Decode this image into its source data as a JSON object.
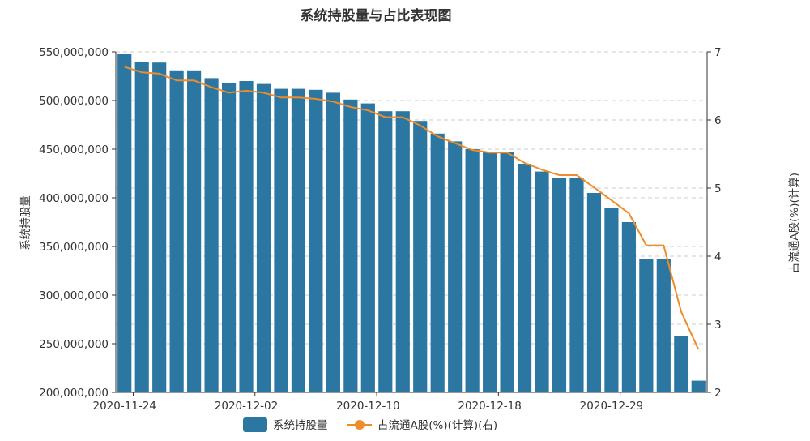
{
  "chart_data": {
    "type": "bar",
    "title": "系统持股量与占比表现图",
    "xlabel": "",
    "ylabel": "系统持股量",
    "y2label": "占流通A股(%)(计算)",
    "ylim": [
      200000000,
      550000000
    ],
    "y2lim": [
      2,
      7
    ],
    "yticks": [
      "200,000,000",
      "250,000,000",
      "300,000,000",
      "350,000,000",
      "400,000,000",
      "450,000,000",
      "500,000,000",
      "550,000,000"
    ],
    "y2ticks": [
      "2",
      "3",
      "4",
      "5",
      "6",
      "7"
    ],
    "xtick_labels": [
      "2020-11-24",
      "2020-12-02",
      "2020-12-10",
      "2020-12-18",
      "2020-12-29"
    ],
    "bar_color": "#2b77a2",
    "line_color": "#ee8c2a",
    "grid": true,
    "legend_position": "bottom",
    "series": [
      {
        "name": "系统持股量",
        "type": "bar",
        "axis": "left",
        "values": [
          548000000,
          540000000,
          539000000,
          531000000,
          531000000,
          523000000,
          518000000,
          520000000,
          517000000,
          512000000,
          512000000,
          511000000,
          508000000,
          501000000,
          497000000,
          489000000,
          489000000,
          479000000,
          466000000,
          458000000,
          450000000,
          447000000,
          447000000,
          435000000,
          427000000,
          420000000,
          420000000,
          405000000,
          390000000,
          375000000,
          337000000,
          337000000,
          258000000,
          212000000
        ]
      },
      {
        "name": "占流通A股(%)(计算)(右)",
        "type": "line",
        "axis": "right",
        "values": [
          6.78,
          6.7,
          6.68,
          6.58,
          6.58,
          6.48,
          6.4,
          6.43,
          6.4,
          6.33,
          6.33,
          6.31,
          6.27,
          6.19,
          6.14,
          6.04,
          6.04,
          5.92,
          5.76,
          5.66,
          5.56,
          5.52,
          5.52,
          5.37,
          5.27,
          5.19,
          5.19,
          5.01,
          4.82,
          4.63,
          4.16,
          4.16,
          3.19,
          2.63
        ]
      }
    ]
  }
}
